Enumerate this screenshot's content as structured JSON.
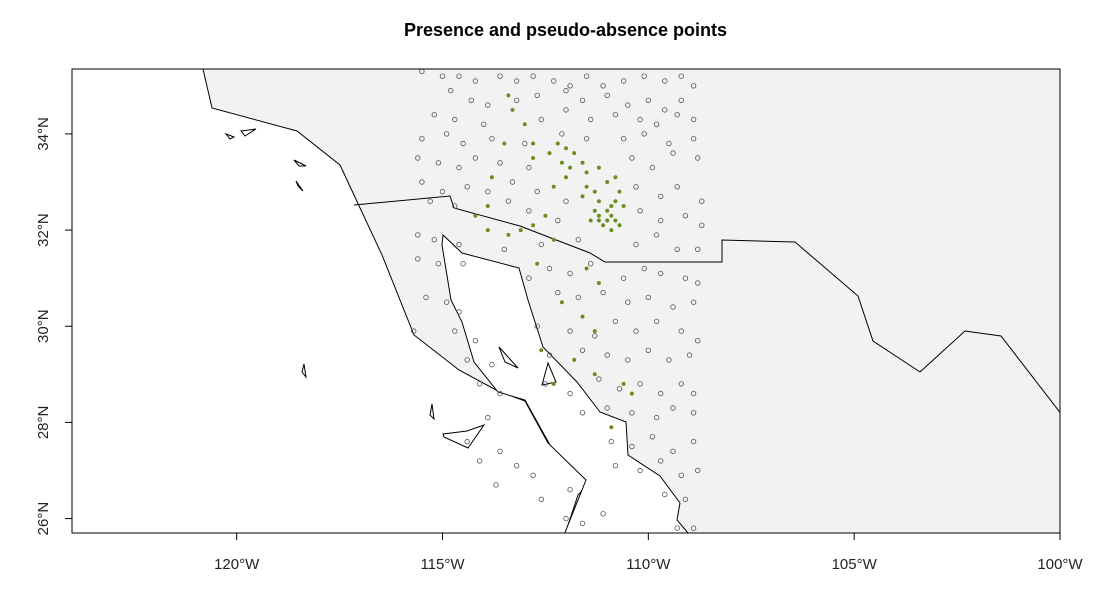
{
  "title": "Presence and pseudo-absence points",
  "map": {
    "background_land_color": "#f2f2f2",
    "water_color": "#ffffff",
    "border_color": "#000000",
    "presence_color": "#6b8e23",
    "absence_color": "#555555",
    "lon_range": [
      -124,
      -100
    ],
    "lat_range": [
      25.7,
      35.35
    ]
  },
  "chart_data": {
    "type": "scatter",
    "title": "Presence and pseudo-absence points",
    "x_ticks": [
      {
        "value": -120,
        "label": "120°W"
      },
      {
        "value": -115,
        "label": "115°W"
      },
      {
        "value": -110,
        "label": "110°W"
      },
      {
        "value": -105,
        "label": "105°W"
      },
      {
        "value": -100,
        "label": "100°W"
      }
    ],
    "y_ticks": [
      {
        "value": 26,
        "label": "26°N"
      },
      {
        "value": 28,
        "label": "28°N"
      },
      {
        "value": 30,
        "label": "30°N"
      },
      {
        "value": 32,
        "label": "32°N"
      },
      {
        "value": 34,
        "label": "34°N"
      }
    ],
    "series": [
      {
        "values": [
          [
            -113.4,
            34.8
          ],
          [
            -113.3,
            34.5
          ],
          [
            -113.0,
            34.2
          ],
          [
            -113.5,
            33.8
          ],
          [
            -112.8,
            33.8
          ],
          [
            -112.8,
            33.5
          ],
          [
            -112.4,
            33.6
          ],
          [
            -112.2,
            33.8
          ],
          [
            -112.0,
            33.7
          ],
          [
            -111.8,
            33.6
          ],
          [
            -111.6,
            33.4
          ],
          [
            -111.9,
            33.3
          ],
          [
            -112.1,
            33.4
          ],
          [
            -111.5,
            33.2
          ],
          [
            -111.2,
            33.3
          ],
          [
            -111.0,
            33.0
          ],
          [
            -110.8,
            33.1
          ],
          [
            -110.7,
            32.8
          ],
          [
            -110.8,
            32.6
          ],
          [
            -110.6,
            32.5
          ],
          [
            -111.5,
            32.9
          ],
          [
            -111.3,
            32.8
          ],
          [
            -112.0,
            33.1
          ],
          [
            -112.3,
            32.9
          ],
          [
            -111.6,
            32.7
          ],
          [
            -111.2,
            32.6
          ],
          [
            -111.0,
            32.4
          ],
          [
            -110.9,
            32.3
          ],
          [
            -110.8,
            32.2
          ],
          [
            -111.2,
            32.3
          ],
          [
            -111.1,
            32.1
          ],
          [
            -110.9,
            32.0
          ],
          [
            -111.3,
            32.4
          ],
          [
            -111.4,
            32.2
          ],
          [
            -110.7,
            32.1
          ],
          [
            -111.0,
            32.2
          ],
          [
            -111.2,
            32.2
          ],
          [
            -110.9,
            32.5
          ],
          [
            -112.5,
            32.3
          ],
          [
            -112.8,
            32.1
          ],
          [
            -113.1,
            32.0
          ],
          [
            -114.2,
            32.3
          ],
          [
            -113.9,
            32.0
          ],
          [
            -113.4,
            31.9
          ],
          [
            -112.3,
            31.8
          ],
          [
            -112.7,
            31.3
          ],
          [
            -111.5,
            31.2
          ],
          [
            -111.2,
            30.9
          ],
          [
            -112.1,
            30.5
          ],
          [
            -111.6,
            30.2
          ],
          [
            -111.3,
            29.9
          ],
          [
            -112.6,
            29.5
          ],
          [
            -111.8,
            29.3
          ],
          [
            -111.3,
            29.0
          ],
          [
            -110.6,
            28.8
          ],
          [
            -110.4,
            28.6
          ],
          [
            -110.9,
            27.9
          ],
          [
            -112.3,
            28.8
          ],
          [
            -113.8,
            33.1
          ],
          [
            -113.9,
            32.5
          ]
        ]
      },
      {
        "values": [
          [
            -115.5,
            35.3
          ],
          [
            -115.0,
            35.2
          ],
          [
            -114.6,
            35.2
          ],
          [
            -114.2,
            35.1
          ],
          [
            -113.6,
            35.2
          ],
          [
            -113.2,
            35.1
          ],
          [
            -112.8,
            35.2
          ],
          [
            -112.3,
            35.1
          ],
          [
            -111.9,
            35.0
          ],
          [
            -111.5,
            35.2
          ],
          [
            -111.1,
            35.0
          ],
          [
            -110.6,
            35.1
          ],
          [
            -110.1,
            35.2
          ],
          [
            -109.6,
            35.1
          ],
          [
            -109.2,
            35.2
          ],
          [
            -108.9,
            35.0
          ],
          [
            -114.8,
            34.9
          ],
          [
            -114.3,
            34.7
          ],
          [
            -113.9,
            34.6
          ],
          [
            -113.2,
            34.7
          ],
          [
            -112.7,
            34.8
          ],
          [
            -112.0,
            34.9
          ],
          [
            -111.6,
            34.7
          ],
          [
            -111.0,
            34.8
          ],
          [
            -110.5,
            34.6
          ],
          [
            -110.0,
            34.7
          ],
          [
            -109.6,
            34.5
          ],
          [
            -109.2,
            34.7
          ],
          [
            -115.2,
            34.4
          ],
          [
            -114.7,
            34.3
          ],
          [
            -114.0,
            34.2
          ],
          [
            -112.6,
            34.3
          ],
          [
            -112.0,
            34.5
          ],
          [
            -111.4,
            34.3
          ],
          [
            -110.8,
            34.4
          ],
          [
            -110.2,
            34.3
          ],
          [
            -109.8,
            34.2
          ],
          [
            -109.3,
            34.4
          ],
          [
            -108.9,
            34.3
          ],
          [
            -115.5,
            33.9
          ],
          [
            -114.9,
            34.0
          ],
          [
            -114.5,
            33.8
          ],
          [
            -113.8,
            33.9
          ],
          [
            -113.0,
            33.8
          ],
          [
            -112.1,
            34.0
          ],
          [
            -111.5,
            33.9
          ],
          [
            -110.6,
            33.9
          ],
          [
            -110.1,
            34.0
          ],
          [
            -109.5,
            33.8
          ],
          [
            -108.9,
            33.9
          ],
          [
            -115.6,
            33.5
          ],
          [
            -115.1,
            33.4
          ],
          [
            -114.6,
            33.3
          ],
          [
            -114.2,
            33.5
          ],
          [
            -113.6,
            33.4
          ],
          [
            -112.9,
            33.3
          ],
          [
            -110.4,
            33.5
          ],
          [
            -109.9,
            33.3
          ],
          [
            -109.4,
            33.6
          ],
          [
            -108.8,
            33.5
          ],
          [
            -115.5,
            33.0
          ],
          [
            -115.0,
            32.8
          ],
          [
            -114.4,
            32.9
          ],
          [
            -113.9,
            32.8
          ],
          [
            -113.3,
            33.0
          ],
          [
            -112.7,
            32.8
          ],
          [
            -112.0,
            32.6
          ],
          [
            -110.3,
            32.9
          ],
          [
            -109.7,
            32.7
          ],
          [
            -109.3,
            32.9
          ],
          [
            -108.7,
            32.6
          ],
          [
            -115.3,
            32.6
          ],
          [
            -114.7,
            32.5
          ],
          [
            -113.4,
            32.6
          ],
          [
            -112.9,
            32.4
          ],
          [
            -112.2,
            32.2
          ],
          [
            -110.2,
            32.4
          ],
          [
            -109.7,
            32.2
          ],
          [
            -109.1,
            32.3
          ],
          [
            -108.7,
            32.1
          ],
          [
            -115.6,
            31.9
          ],
          [
            -115.2,
            31.8
          ],
          [
            -114.6,
            31.7
          ],
          [
            -113.5,
            31.6
          ],
          [
            -112.6,
            31.7
          ],
          [
            -111.7,
            31.8
          ],
          [
            -110.3,
            31.7
          ],
          [
            -109.8,
            31.9
          ],
          [
            -109.3,
            31.6
          ],
          [
            -108.8,
            31.6
          ],
          [
            -115.6,
            31.4
          ],
          [
            -115.1,
            31.3
          ],
          [
            -114.5,
            31.3
          ],
          [
            -112.9,
            31.0
          ],
          [
            -112.4,
            31.2
          ],
          [
            -111.9,
            31.1
          ],
          [
            -111.4,
            31.3
          ],
          [
            -110.6,
            31.0
          ],
          [
            -110.1,
            31.2
          ],
          [
            -109.7,
            31.1
          ],
          [
            -109.1,
            31.0
          ],
          [
            -108.8,
            30.9
          ],
          [
            -115.4,
            30.6
          ],
          [
            -114.9,
            30.5
          ],
          [
            -114.6,
            30.3
          ],
          [
            -112.2,
            30.7
          ],
          [
            -111.7,
            30.6
          ],
          [
            -111.1,
            30.7
          ],
          [
            -110.5,
            30.5
          ],
          [
            -110.0,
            30.6
          ],
          [
            -109.4,
            30.4
          ],
          [
            -108.9,
            30.5
          ],
          [
            -115.7,
            29.9
          ],
          [
            -114.7,
            29.9
          ],
          [
            -114.2,
            29.7
          ],
          [
            -112.7,
            30.0
          ],
          [
            -111.9,
            29.9
          ],
          [
            -111.3,
            29.8
          ],
          [
            -110.8,
            30.1
          ],
          [
            -110.3,
            29.9
          ],
          [
            -109.8,
            30.1
          ],
          [
            -109.2,
            29.9
          ],
          [
            -108.8,
            29.7
          ],
          [
            -114.4,
            29.3
          ],
          [
            -113.8,
            29.2
          ],
          [
            -112.4,
            29.4
          ],
          [
            -111.6,
            29.5
          ],
          [
            -111.0,
            29.4
          ],
          [
            -110.5,
            29.3
          ],
          [
            -110.0,
            29.5
          ],
          [
            -109.5,
            29.3
          ],
          [
            -109.0,
            29.4
          ],
          [
            -114.1,
            28.8
          ],
          [
            -113.6,
            28.6
          ],
          [
            -112.5,
            28.8
          ],
          [
            -111.9,
            28.6
          ],
          [
            -111.2,
            28.9
          ],
          [
            -110.7,
            28.7
          ],
          [
            -110.2,
            28.8
          ],
          [
            -109.7,
            28.6
          ],
          [
            -109.2,
            28.8
          ],
          [
            -108.9,
            28.6
          ],
          [
            -113.9,
            28.1
          ],
          [
            -111.6,
            28.2
          ],
          [
            -111.0,
            28.3
          ],
          [
            -110.4,
            28.2
          ],
          [
            -109.8,
            28.1
          ],
          [
            -109.4,
            28.3
          ],
          [
            -108.9,
            28.2
          ],
          [
            -114.4,
            27.6
          ],
          [
            -113.6,
            27.4
          ],
          [
            -110.9,
            27.6
          ],
          [
            -110.4,
            27.5
          ],
          [
            -109.9,
            27.7
          ],
          [
            -109.4,
            27.4
          ],
          [
            -108.9,
            27.6
          ],
          [
            -114.1,
            27.2
          ],
          [
            -113.2,
            27.1
          ],
          [
            -112.8,
            26.9
          ],
          [
            -110.8,
            27.1
          ],
          [
            -110.2,
            27.0
          ],
          [
            -109.7,
            27.2
          ],
          [
            -109.2,
            26.9
          ],
          [
            -108.8,
            27.0
          ],
          [
            -113.7,
            26.7
          ],
          [
            -112.6,
            26.4
          ],
          [
            -111.9,
            26.6
          ],
          [
            -109.6,
            26.5
          ],
          [
            -109.1,
            26.4
          ],
          [
            -112.0,
            26.0
          ],
          [
            -111.6,
            25.9
          ],
          [
            -111.1,
            26.1
          ],
          [
            -108.9,
            25.8
          ],
          [
            -109.3,
            25.8
          ]
        ]
      }
    ]
  }
}
